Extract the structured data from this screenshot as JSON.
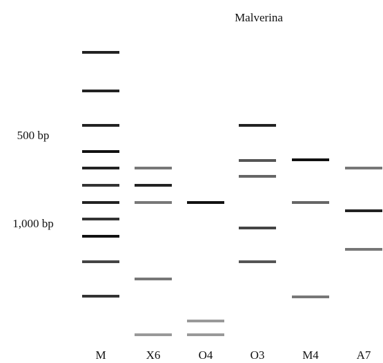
{
  "title": "Malverina",
  "markers": [
    "500 bp",
    "1,000 bp"
  ],
  "lanes": [
    "M",
    "X6",
    "O4",
    "O3",
    "M4",
    "A7"
  ]
}
